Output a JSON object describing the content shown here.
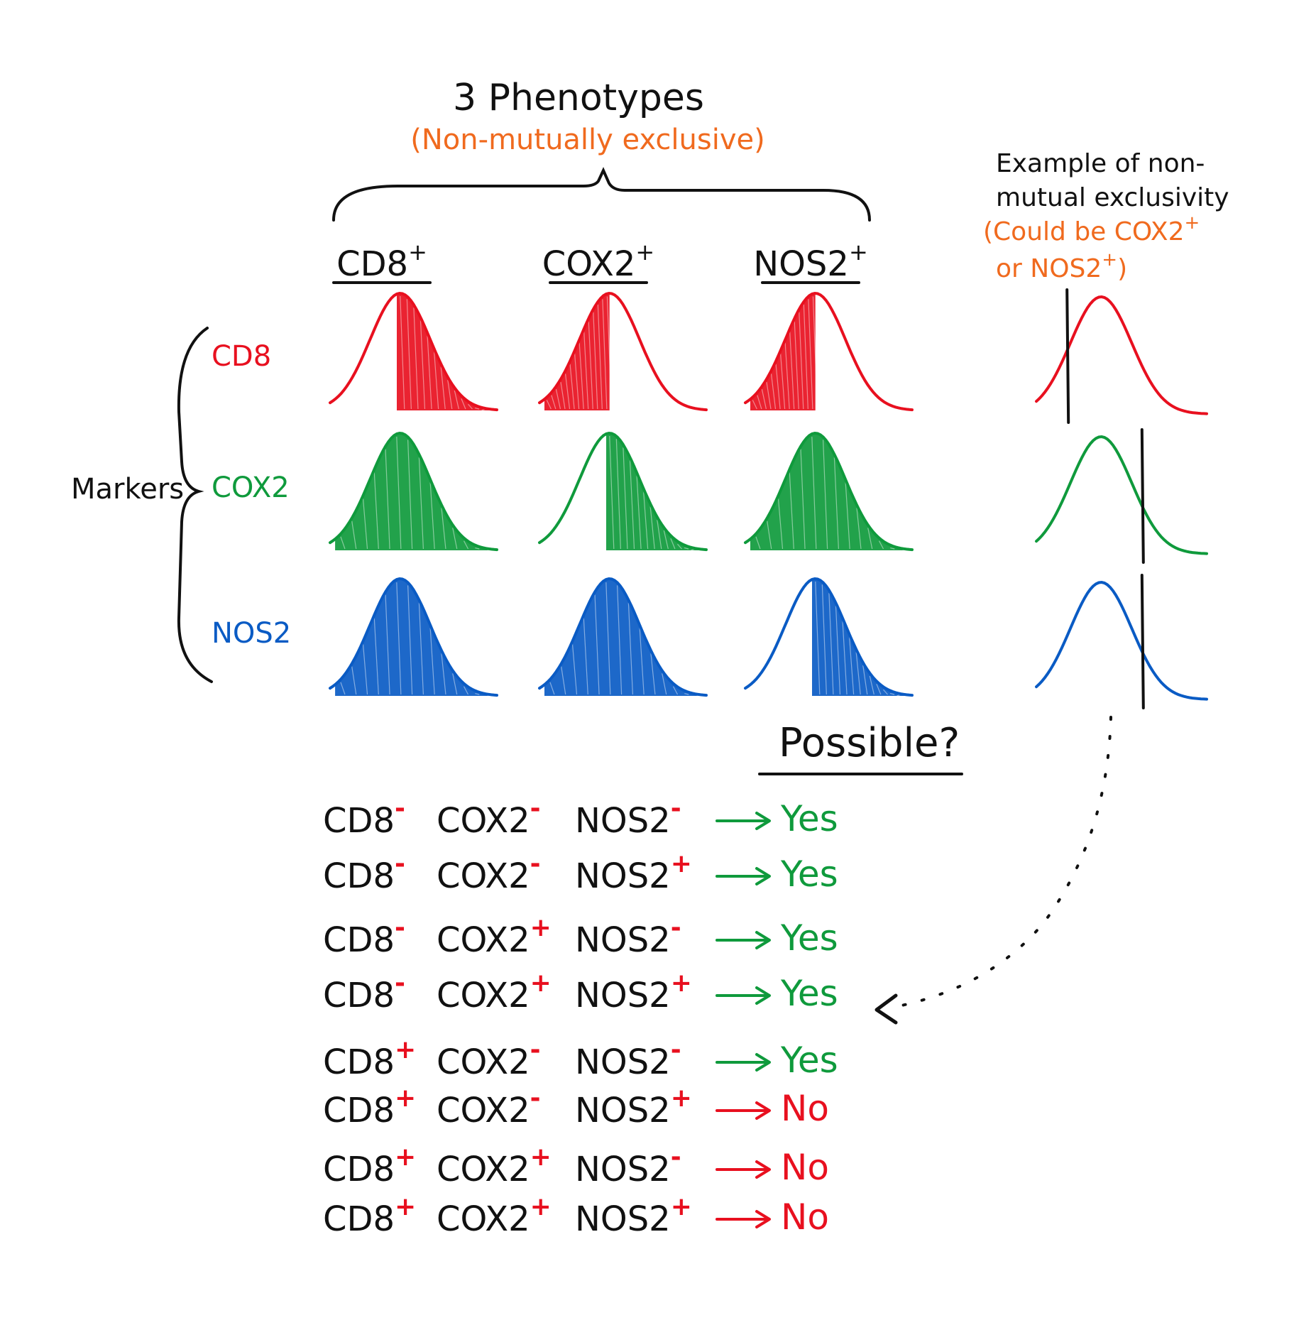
{
  "title": "3 Phenotypes",
  "subtitle": "(Non-mutually exclusive)",
  "phenotypes": [
    {
      "name": "CD8",
      "sign": "+"
    },
    {
      "name": "COX2",
      "sign": "+"
    },
    {
      "name": "NOS2",
      "sign": "+"
    }
  ],
  "markers_label": "Markers",
  "markers": [
    {
      "name": "CD8",
      "color": "#e8101f"
    },
    {
      "name": "COX2",
      "color": "#0f9a3c"
    },
    {
      "name": "NOS2",
      "color": "#0a5bc4"
    }
  ],
  "fill_grid": [
    [
      "right",
      "left",
      "left"
    ],
    [
      "full",
      "right",
      "full"
    ],
    [
      "full",
      "full",
      "right"
    ]
  ],
  "example": {
    "title_line1": "Example of non-",
    "title_line2": "mutual exclusivity",
    "note_line1": "(Could be COX2",
    "note_sup1": "+",
    "note_line2": "or NOS2",
    "note_sup2": "+",
    "note_close": ")",
    "note_color": "#f06a1e"
  },
  "possible_heading": "Possible?",
  "combinations": [
    {
      "cd8": "-",
      "cox2": "-",
      "nos2": "-",
      "answer": "Yes"
    },
    {
      "cd8": "-",
      "cox2": "-",
      "nos2": "+",
      "answer": "Yes"
    },
    {
      "cd8": "-",
      "cox2": "+",
      "nos2": "-",
      "answer": "Yes"
    },
    {
      "cd8": "-",
      "cox2": "+",
      "nos2": "+",
      "answer": "Yes"
    },
    {
      "cd8": "+",
      "cox2": "-",
      "nos2": "-",
      "answer": "Yes"
    },
    {
      "cd8": "+",
      "cox2": "-",
      "nos2": "+",
      "answer": "No"
    },
    {
      "cd8": "+",
      "cox2": "+",
      "nos2": "-",
      "answer": "No"
    },
    {
      "cd8": "+",
      "cox2": "+",
      "nos2": "+",
      "answer": "No"
    }
  ],
  "combo_labels": {
    "cd8": "CD8",
    "cox2": "COX2",
    "nos2": "NOS2"
  },
  "colors": {
    "yes": "#0f9a3c",
    "no": "#e8101f",
    "sign": "#e8101f",
    "ink": "#111111"
  }
}
